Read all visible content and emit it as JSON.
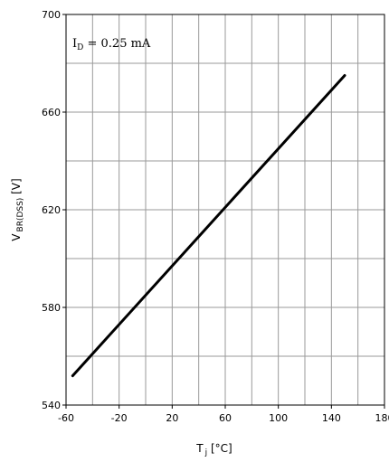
{
  "chart_data": {
    "type": "line",
    "title": "",
    "xlabel": {
      "main": "T",
      "sub": "j",
      "unit": " [°C]"
    },
    "ylabel": {
      "main": "V",
      "sub": "BR(DSS)",
      "unit": " [V]"
    },
    "xlim": [
      -60,
      180
    ],
    "ylim": [
      540,
      700
    ],
    "x_ticks": [
      -60,
      -20,
      20,
      60,
      100,
      140,
      180
    ],
    "y_ticks": [
      540,
      580,
      620,
      660,
      700
    ],
    "x_minor_step": 20,
    "y_minor_step": 20,
    "grid": true,
    "annotation": {
      "main": "I",
      "sub": "D",
      "rest": " = 0.25 mA"
    },
    "series": [
      {
        "name": "",
        "color": "#000000",
        "x": [
          -55,
          150
        ],
        "y": [
          552,
          675
        ]
      }
    ]
  }
}
